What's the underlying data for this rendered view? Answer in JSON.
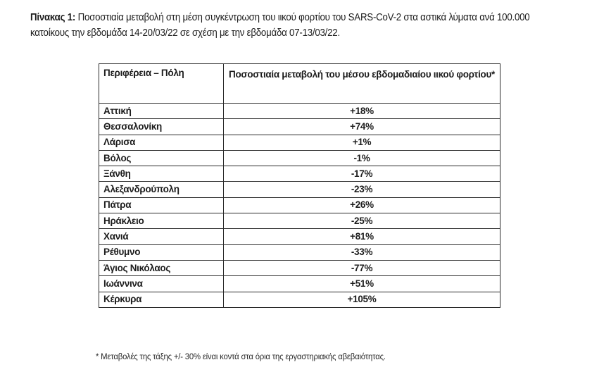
{
  "caption": {
    "label": "Πίνακας 1:",
    "text": " Ποσοστιαία μεταβολή στη μέση συγκέντρωση του ιικού φορτίου του SARS-CoV-2 στα αστικά λύματα ανά 100.000 κατοίκους την εβδομάδα 14-20/03/22 σε σχέση με την εβδομάδα 07-13/03/22."
  },
  "table": {
    "headers": [
      "Περιφέρεια – Πόλη",
      "Ποσοστιαία μεταβολή του μέσου εβδομαδιαίου ιικού φορτίου*"
    ],
    "rows": [
      {
        "city": "Αττική",
        "change": "+18%"
      },
      {
        "city": "Θεσσαλονίκη",
        "change": "+74%"
      },
      {
        "city": "Λάρισα",
        "change": "+1%"
      },
      {
        "city": "Βόλος",
        "change": "-1%"
      },
      {
        "city": "Ξάνθη",
        "change": "-17%"
      },
      {
        "city": "Αλεξανδρούπολη",
        "change": "-23%"
      },
      {
        "city": "Πάτρα",
        "change": "+26%"
      },
      {
        "city": "Ηράκλειο",
        "change": "-25%"
      },
      {
        "city": "Χανιά",
        "change": "+81%"
      },
      {
        "city": "Ρέθυμνο",
        "change": "-33%"
      },
      {
        "city": "Άγιος Νικόλαος",
        "change": "-77%"
      },
      {
        "city": "Ιωάννινα",
        "change": "+51%"
      },
      {
        "city": "Κέρκυρα",
        "change": "+105%"
      }
    ]
  },
  "footnote": "* Μεταβολές της τάξης +/- 30% είναι κοντά στα όρια της εργαστηριακής αβεβαιότητας."
}
